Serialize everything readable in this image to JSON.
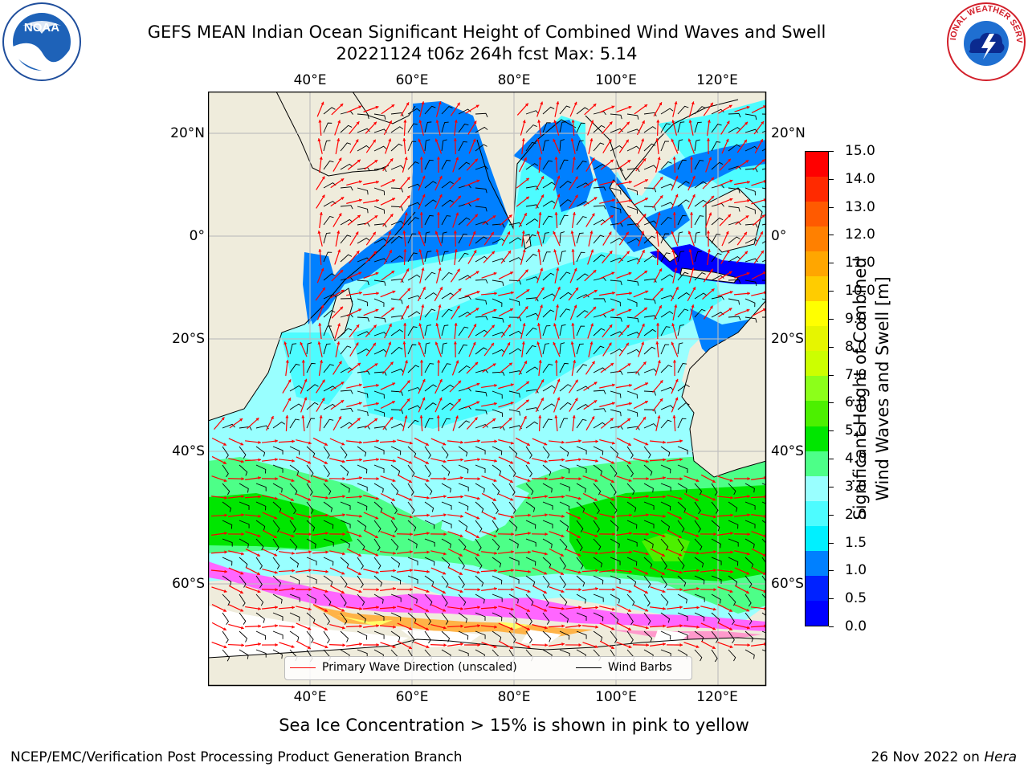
{
  "header": {
    "title_line1": "GEFS MEAN Indian Ocean Significant Height of Combined Wind Waves and Swell",
    "title_line2": "20221124 t06z 264h fcst   Max: 5.14"
  },
  "logos": {
    "left": {
      "text": "NOAA",
      "icon": "noaa-logo"
    },
    "right": {
      "text": "NATIONAL WEATHER SERVICE",
      "icon": "nws-logo"
    }
  },
  "map": {
    "lon_ticks": [
      "40°E",
      "60°E",
      "80°E",
      "100°E",
      "120°E"
    ],
    "lat_ticks": [
      "20°N",
      "0°",
      "20°S",
      "40°S",
      "60°S"
    ],
    "lon_range": [
      20,
      129
    ],
    "lat_range": [
      -76,
      27.5
    ],
    "colors": {
      "land": "#efecdc",
      "ice_free_far_south": "#ffffff",
      "gridline": "#bdbdbd"
    }
  },
  "legend": {
    "wave_direction": "Primary Wave Direction (unscaled)",
    "wind_barbs": "Wind Barbs",
    "wave_color": "#ff0000",
    "barb_color": "#000000"
  },
  "colorbar": {
    "label_line1": "Significant Height of Combined",
    "label_line2": "Wind Waves and Swell [m]",
    "ticks": [
      "15.0",
      "14.0",
      "13.0",
      "12.0",
      "11.0",
      "10.0",
      "9.0",
      "8.0",
      "7.0",
      "6.0",
      "5.0",
      "4.0",
      "3.0",
      "2.0",
      "1.5",
      "1.0",
      "0.5",
      "0.0"
    ],
    "colors": [
      "#ff0000",
      "#ff2a00",
      "#ff5a00",
      "#ff8000",
      "#ffa600",
      "#ffcc00",
      "#ffff00",
      "#e6f500",
      "#ccff00",
      "#8cff1a",
      "#4cf000",
      "#00e600",
      "#4dff88",
      "#99ffff",
      "#4dfcff",
      "#00f0ff",
      "#0080ff",
      "#0022ff",
      "#0000ff"
    ]
  },
  "caption": "Sea Ice Concentration > 15% is shown in pink to yellow",
  "footer": {
    "left": "NCEP/EMC/Verification Post Processing Product Generation Branch",
    "date": "26 Nov 2022 on",
    "machine": "Hera"
  }
}
